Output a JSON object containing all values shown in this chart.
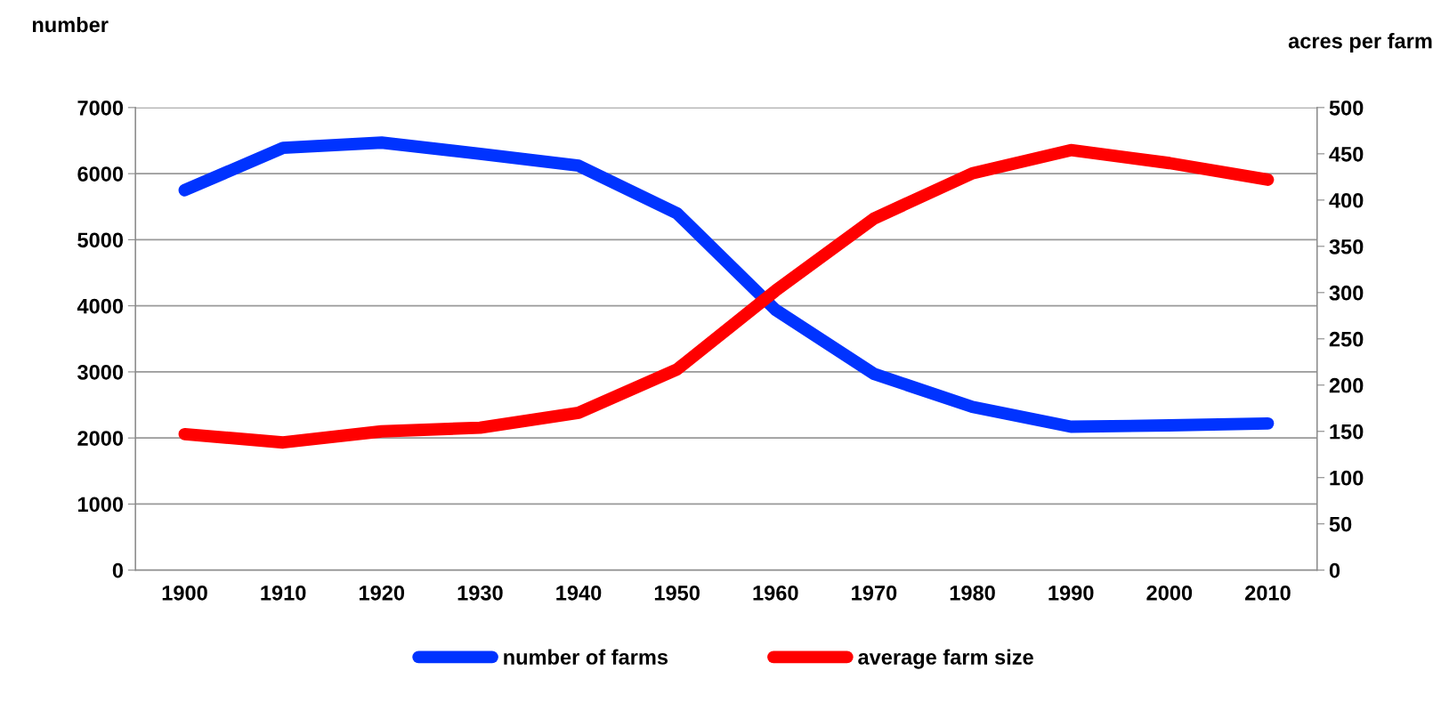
{
  "chart_data": {
    "type": "line",
    "categories": [
      "1900",
      "1910",
      "1920",
      "1930",
      "1940",
      "1950",
      "1960",
      "1970",
      "1980",
      "1990",
      "2000",
      "2010"
    ],
    "ylabel": "number",
    "y2label": "acres per farm",
    "ylim": [
      0,
      7000
    ],
    "yticks": [
      0,
      1000,
      2000,
      3000,
      4000,
      5000,
      6000,
      7000
    ],
    "y2lim": [
      0,
      500
    ],
    "y2ticks": [
      0,
      50,
      100,
      150,
      200,
      250,
      300,
      350,
      400,
      450,
      500
    ],
    "grid": "y",
    "legend": "bottom",
    "line_style": "solid",
    "series": [
      {
        "name": "number of farms",
        "color": "#0033ff",
        "values": [
          5750,
          6390,
          6470,
          6300,
          6120,
          5400,
          3940,
          2970,
          2470,
          2170,
          2190,
          2220
        ]
      },
      {
        "name": "average farm size",
        "color": "#ff0000",
        "axis": "y2",
        "values": [
          147,
          138,
          150,
          154,
          170,
          217,
          302,
          380,
          429,
          454,
          440,
          422
        ]
      }
    ]
  }
}
